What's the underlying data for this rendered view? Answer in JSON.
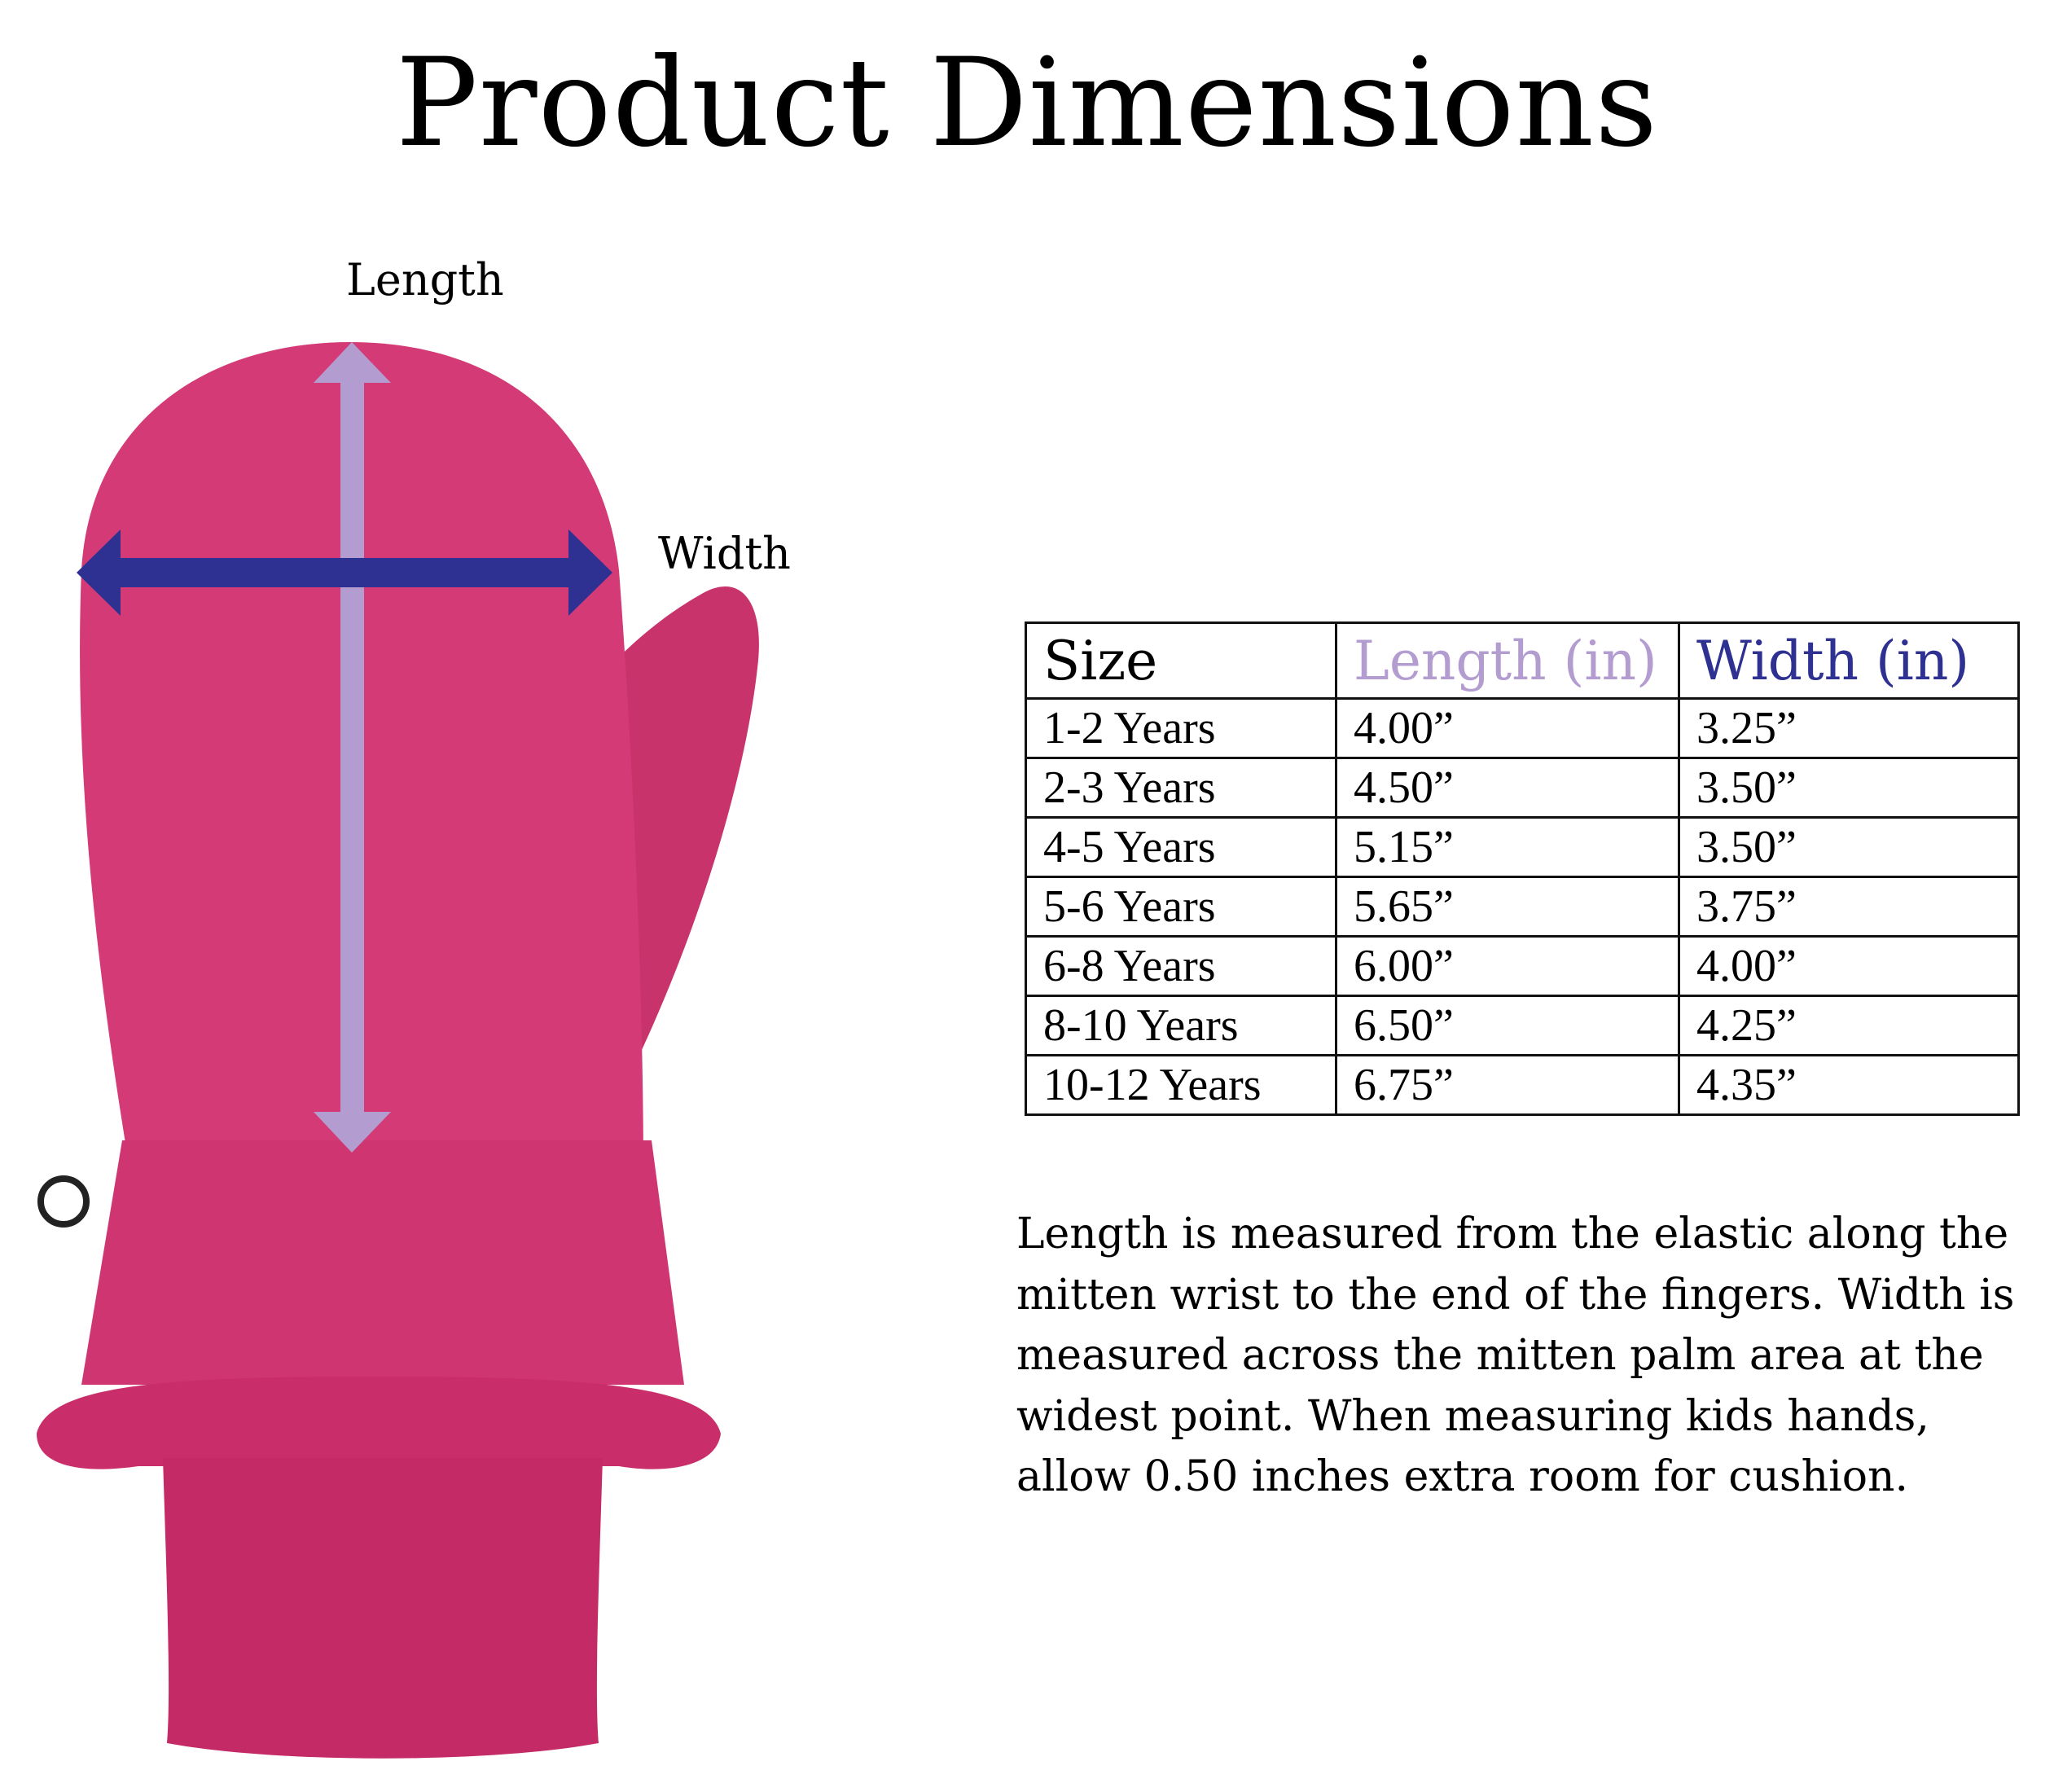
{
  "title": "Product Dimensions",
  "diagram": {
    "length_label": "Length",
    "width_label": "Width",
    "colors": {
      "mitten": "#d33a76",
      "cuff": "#c92e6a",
      "length_arrow": "#b39dd0",
      "width_arrow": "#2e3192"
    }
  },
  "table": {
    "headers": [
      "Size",
      "Length (in)",
      "Width (in)"
    ],
    "header_colors": [
      "#000000",
      "#b39dd0",
      "#2e3192"
    ],
    "rows": [
      [
        "1-2 Years",
        "4.00”",
        "3.25”"
      ],
      [
        "2-3 Years",
        "4.50”",
        "3.50”"
      ],
      [
        "4-5 Years",
        "5.15”",
        "3.50”"
      ],
      [
        "5-6 Years",
        "5.65”",
        "3.75”"
      ],
      [
        "6-8 Years",
        "6.00”",
        "4.00”"
      ],
      [
        "8-10 Years",
        "6.50”",
        "4.25”"
      ],
      [
        "10-12 Years",
        "6.75”",
        "4.35”"
      ]
    ]
  },
  "note": "Length is measured from the elastic along the mitten wrist to the end of the fingers. Width is measured across the mitten palm area at the widest point. When measuring kids hands, allow 0.50 inches extra room for cushion."
}
